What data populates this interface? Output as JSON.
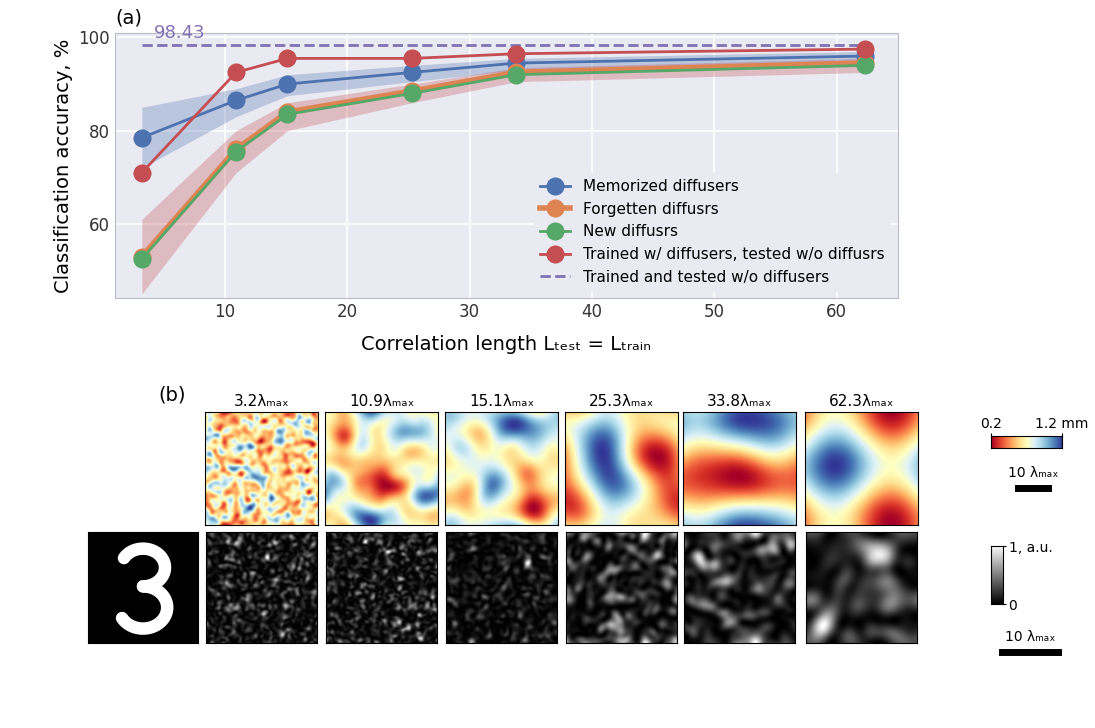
{
  "chart_data": {
    "type": "line",
    "x_label": "Correlation length Lₜₑₛₜ = Lₜᵣₐᵢₙ",
    "y_label": "Classification accuracy, %",
    "x": [
      3.2,
      10.9,
      15.1,
      25.3,
      33.8,
      62.3
    ],
    "xlim": [
      1,
      65
    ],
    "xticks": [
      10,
      20,
      30,
      40,
      50,
      60
    ],
    "ylim": [
      44,
      101
    ],
    "yticks": [
      60,
      80,
      100
    ],
    "grid": true,
    "legend": "lower right",
    "series": [
      {
        "name": "Memorized diffusers",
        "color": "#4c72b0",
        "marker": "circle",
        "line_style": "solid",
        "values": [
          78.5,
          86.5,
          90.0,
          92.5,
          94.5,
          96.0
        ],
        "error_low": [
          72.0,
          83.0,
          87.5,
          90.5,
          93.0,
          95.0
        ],
        "error_high": [
          85.0,
          89.0,
          92.0,
          94.0,
          95.5,
          97.0
        ]
      },
      {
        "name": "Forgetten diffusrs",
        "color": "#dd8452",
        "marker": "circle",
        "line_style": "solid",
        "values": [
          53.0,
          76.0,
          84.0,
          88.5,
          92.5,
          94.5
        ],
        "error_low": [
          45.0,
          71.0,
          80.0,
          86.0,
          90.5,
          92.5
        ],
        "error_high": [
          61.0,
          80.0,
          86.0,
          90.0,
          93.5,
          95.5
        ]
      },
      {
        "name": "New diffusrs",
        "color": "#55a868",
        "marker": "circle",
        "line_style": "solid",
        "values": [
          52.5,
          75.5,
          83.5,
          88.0,
          92.0,
          94.0
        ]
      },
      {
        "name": "Trained w/ diffusers, tested w/o diffusrs",
        "color": "#c44e52",
        "marker": "circle",
        "line_style": "solid",
        "values": [
          71.0,
          92.5,
          95.5,
          95.5,
          96.5,
          97.5
        ]
      }
    ],
    "reference_line": {
      "name": "Trained and tested w/o diffusers",
      "value": 98.43,
      "label": "98.43",
      "color": "#8172b3",
      "line_style": "dashed"
    }
  },
  "panel_labels": [
    "(a)",
    "(b)"
  ],
  "panel_b": {
    "correlation_lengths": [
      3.2,
      10.9,
      15.1,
      25.3,
      33.8,
      62.3
    ],
    "column_labels": [
      "3.2λₘₐₓ",
      "10.9λₘₐₓ",
      "15.1λₘₐₓ",
      "25.3λₘₐₓ",
      "33.8λₘₐₓ",
      "62.3λₘₐₓ"
    ],
    "thickness_colorbar": {
      "range": [
        0.2,
        1.2
      ],
      "ticks": [
        0.2,
        {
          "value": 1.2,
          "label": "1.2 mm"
        }
      ]
    },
    "intensity_colorbar": {
      "range": [
        0,
        1
      ],
      "ticks": [
        {
          "value": 1,
          "label": "1, a.u."
        },
        0
      ]
    },
    "scale_bar_top": {
      "length": 10,
      "label": "10 λₘₐₓ"
    },
    "scale_bar_bottom": {
      "length": 10,
      "label": "10 λₘₐₓ"
    }
  }
}
